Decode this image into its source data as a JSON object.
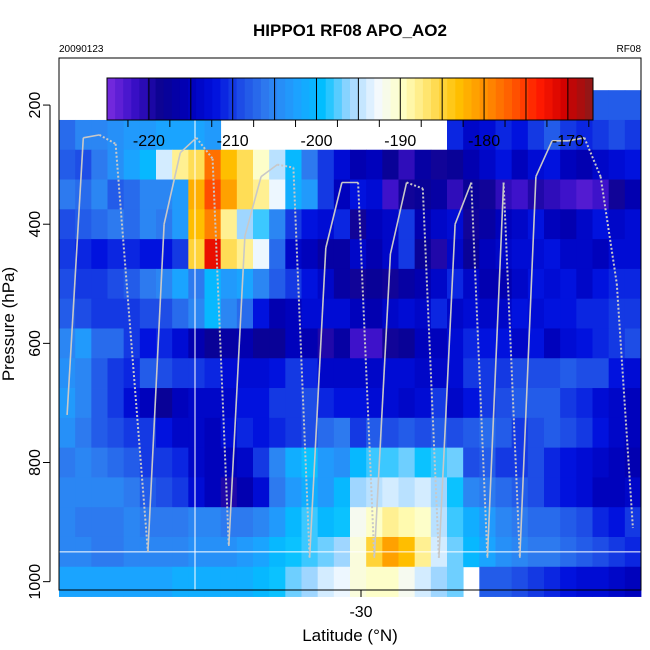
{
  "chart_data": {
    "type": "heatmap",
    "title": "HIPPO1 RF08 APO_AO2",
    "subtitle_left": "20090123",
    "subtitle_right": "RF08",
    "xlabel": "Latitude (°N)",
    "ylabel": "Pressure (hPa)",
    "x_tick_labels": [
      "-30"
    ],
    "y_tick_labels": [
      "200",
      "400",
      "600",
      "800",
      "1000"
    ],
    "y_ticks": [
      200,
      400,
      600,
      800,
      1000
    ],
    "ylim": [
      1000,
      100
    ],
    "colorbar": {
      "min": -225,
      "max": -167,
      "tick_values": [
        -220,
        -210,
        -200,
        -190,
        -180,
        -170
      ],
      "tick_labels": [
        "-220",
        "-210",
        "-200",
        "-190",
        "-180",
        "-170"
      ],
      "colors": [
        "#7b2ce0",
        "#3a10c8",
        "#0b0290",
        "#0000b8",
        "#0010de",
        "#1f4fe6",
        "#2f7ff0",
        "#1ea0ff",
        "#00c0ff",
        "#9fd6ff",
        "#f3f9ff",
        "#ffffc0",
        "#ffe060",
        "#ffc000",
        "#ff9000",
        "#ff5a00",
        "#ff1a00",
        "#d00000",
        "#8b1a1a"
      ]
    },
    "x_cells": 36,
    "pressure_levels": [
      200,
      250,
      300,
      350,
      400,
      450,
      500,
      550,
      600,
      650,
      700,
      750,
      800,
      850,
      900,
      950,
      1000
    ],
    "grid_values": [
      [
        null,
        null,
        null,
        null,
        null,
        -202,
        -202,
        -202,
        -201,
        -201,
        -201,
        -202,
        -202,
        null,
        null,
        null,
        null,
        null,
        null,
        null,
        null,
        null,
        null,
        null,
        null,
        -208,
        -208,
        -208,
        -208,
        -208,
        -208,
        -208,
        -208,
        -208,
        -208,
        -208
      ],
      [
        -207,
        -205,
        -205,
        -204,
        -203,
        -203,
        -202,
        -202,
        -202,
        -203,
        null,
        null,
        null,
        null,
        null,
        null,
        null,
        null,
        null,
        null,
        null,
        null,
        null,
        null,
        -211,
        -214,
        -213,
        -211,
        -212,
        -210,
        -208,
        -210,
        -211,
        -210,
        -209,
        -210
      ],
      [
        -208,
        -209,
        -206,
        -204,
        -202,
        -200,
        -194,
        -188,
        -186,
        -178,
        -183,
        -186,
        -190,
        -195,
        -200,
        -206,
        -210,
        -213,
        -216,
        -215,
        -218,
        -221,
        -217,
        -219,
        -218,
        -216,
        -214,
        -212,
        -215,
        -213,
        -212,
        -215,
        -216,
        -214,
        -213,
        -212
      ],
      [
        -206,
        -207,
        -205,
        -208,
        -207,
        -205,
        -205,
        -203,
        -182,
        -176,
        -181,
        -186,
        -188,
        -193,
        -201,
        -203,
        -210,
        -215,
        -212,
        -213,
        -222,
        -219,
        -218,
        -217,
        -221,
        -218,
        -219,
        -221,
        -222,
        -220,
        -221,
        -222,
        -223,
        -222,
        -219,
        -216
      ],
      [
        -209,
        -208,
        -207,
        -206,
        -207,
        -205,
        -206,
        -203,
        -183,
        -179,
        -188,
        -196,
        -198,
        -205,
        -210,
        -212,
        -213,
        -211,
        -219,
        -215,
        -214,
        -210,
        -216,
        -214,
        -213,
        -219,
        -217,
        -215,
        -214,
        -212,
        -215,
        -216,
        -214,
        -212,
        -214,
        -213
      ],
      [
        -210,
        -211,
        -212,
        -211,
        -211,
        -212,
        -212,
        -210,
        -185,
        -172,
        -186,
        -188,
        -193,
        -207,
        -214,
        -215,
        -217,
        -217,
        -214,
        -216,
        -214,
        -210,
        -218,
        -220,
        -214,
        -218,
        -215,
        -214,
        -213,
        -213,
        -212,
        -214,
        -214,
        -215,
        -213,
        -213
      ],
      [
        -209,
        -210,
        -210,
        -209,
        -208,
        -206,
        -205,
        -202,
        -206,
        -200,
        -203,
        -202,
        -205,
        -208,
        -210,
        -212,
        -214,
        -217,
        -219,
        -218,
        -219,
        -217,
        -216,
        -214,
        -211,
        -214,
        -216,
        -216,
        -214,
        -212,
        -213,
        -212,
        -214,
        -212,
        -211,
        -211
      ],
      [
        -208,
        -209,
        -210,
        -210,
        -210,
        -209,
        -209,
        -207,
        -205,
        -200,
        -205,
        -207,
        -212,
        -216,
        -215,
        -213,
        -213,
        -213,
        -215,
        -216,
        -214,
        -213,
        -214,
        -211,
        -214,
        -213,
        -214,
        -214,
        -212,
        -213,
        -212,
        -212,
        -211,
        -211,
        -210,
        -210
      ],
      [
        -205,
        -203,
        -207,
        -207,
        -210,
        -212,
        -211,
        -213,
        -216,
        -218,
        -217,
        -216,
        -218,
        -218,
        -215,
        -216,
        -220,
        -217,
        -222,
        -222,
        -219,
        -218,
        -215,
        -215,
        -213,
        -211,
        -212,
        -212,
        -214,
        -212,
        -215,
        -213,
        -212,
        -211,
        -210,
        -209
      ],
      [
        -204,
        -205,
        -208,
        -210,
        -211,
        -208,
        -209,
        -210,
        -210,
        -211,
        -213,
        -213,
        -213,
        -212,
        -210,
        -211,
        -214,
        -214,
        -214,
        -214,
        -213,
        -213,
        -214,
        -214,
        -213,
        -210,
        -210,
        -210,
        -209,
        -209,
        -209,
        -208,
        -209,
        -209,
        -212,
        -213
      ],
      [
        -203,
        -205,
        -208,
        -210,
        -213,
        -215,
        -218,
        -215,
        -214,
        -214,
        -214,
        -212,
        -212,
        -210,
        -210,
        -209,
        -211,
        -212,
        -212,
        -213,
        -213,
        -214,
        -213,
        -210,
        -214,
        -212,
        -210,
        -209,
        -208,
        -208,
        -208,
        -210,
        -211,
        -213,
        -214,
        -215
      ],
      [
        -204,
        -206,
        -208,
        -209,
        -210,
        -210,
        -212,
        -214,
        -214,
        -215,
        -213,
        -211,
        -212,
        -211,
        -210,
        -209,
        -207,
        -206,
        -210,
        -208,
        -209,
        -208,
        -209,
        -208,
        -209,
        -208,
        -207,
        -208,
        -210,
        -209,
        -208,
        -209,
        -210,
        -212,
        -214,
        -215
      ],
      [
        -206,
        -205,
        -206,
        -207,
        -208,
        -210,
        -210,
        -211,
        -214,
        -215,
        -215,
        -214,
        -210,
        -205,
        -201,
        -199,
        -203,
        -204,
        -200,
        -198,
        -198,
        -197,
        -199,
        -198,
        -197,
        -209,
        -208,
        -210,
        -210,
        -209,
        -211,
        -212,
        -213,
        -214,
        -215,
        -216
      ],
      [
        -205,
        -205,
        -205,
        -205,
        -206,
        -208,
        -209,
        -210,
        -213,
        -215,
        -220,
        -216,
        -213,
        -206,
        -203,
        -201,
        -203,
        -200,
        -196,
        -195,
        -194,
        -195,
        -194,
        -196,
        -199,
        -205,
        -206,
        -207,
        -208,
        -209,
        -211,
        -212,
        -213,
        -215,
        -215,
        -214
      ],
      [
        -205,
        -206,
        -206,
        -206,
        -205,
        -206,
        -206,
        -206,
        -205,
        -205,
        -206,
        -206,
        -205,
        -203,
        -200,
        -198,
        -200,
        -199,
        -192,
        -190,
        -188,
        -189,
        -190,
        -195,
        -198,
        -201,
        -203,
        -205,
        -206,
        -207,
        -207,
        -208,
        -209,
        -211,
        -212,
        -210
      ],
      [
        -205,
        -205,
        -206,
        -206,
        -205,
        -205,
        -205,
        -205,
        -204,
        -204,
        -204,
        -203,
        -202,
        -200,
        -199,
        -198,
        -197,
        -196,
        -191,
        -185,
        -181,
        -183,
        -188,
        -194,
        -197,
        -200,
        -202,
        -204,
        -205,
        -206,
        -206,
        -207,
        -208,
        -209,
        -210,
        -211
      ],
      [
        -202,
        -202,
        -202,
        -202,
        -202,
        -202,
        -202,
        -201,
        -201,
        -201,
        -201,
        -201,
        -200,
        -199,
        -197,
        -196,
        -194,
        -193,
        -191,
        -190,
        -190,
        -192,
        -194,
        -196,
        -197,
        null,
        -208,
        -208,
        -209,
        -210,
        -211,
        -212,
        -213,
        -213,
        -214,
        -215
      ]
    ],
    "flight_track": {
      "points": [
        [
          0,
          720
        ],
        [
          1,
          255
        ],
        [
          2,
          250
        ],
        [
          3,
          265
        ],
        [
          5,
          950
        ],
        [
          6,
          400
        ],
        [
          7,
          280
        ],
        [
          8,
          255
        ],
        [
          9,
          290
        ],
        [
          10,
          940
        ],
        [
          11,
          420
        ],
        [
          12,
          320
        ],
        [
          13,
          300
        ],
        [
          14,
          305
        ],
        [
          15,
          960
        ],
        [
          16,
          440
        ],
        [
          17,
          330
        ],
        [
          18,
          330
        ],
        [
          19,
          960
        ],
        [
          20,
          450
        ],
        [
          21,
          330
        ],
        [
          22,
          340
        ],
        [
          23,
          960
        ],
        [
          24,
          400
        ],
        [
          25,
          330
        ],
        [
          26,
          960
        ],
        [
          27,
          330
        ],
        [
          28,
          960
        ],
        [
          29,
          320
        ],
        [
          30,
          260
        ],
        [
          31,
          260
        ],
        [
          32,
          255
        ],
        [
          33,
          320
        ],
        [
          34,
          500
        ],
        [
          35,
          910
        ]
      ]
    },
    "grid": false,
    "legend": "colorbar-top"
  }
}
